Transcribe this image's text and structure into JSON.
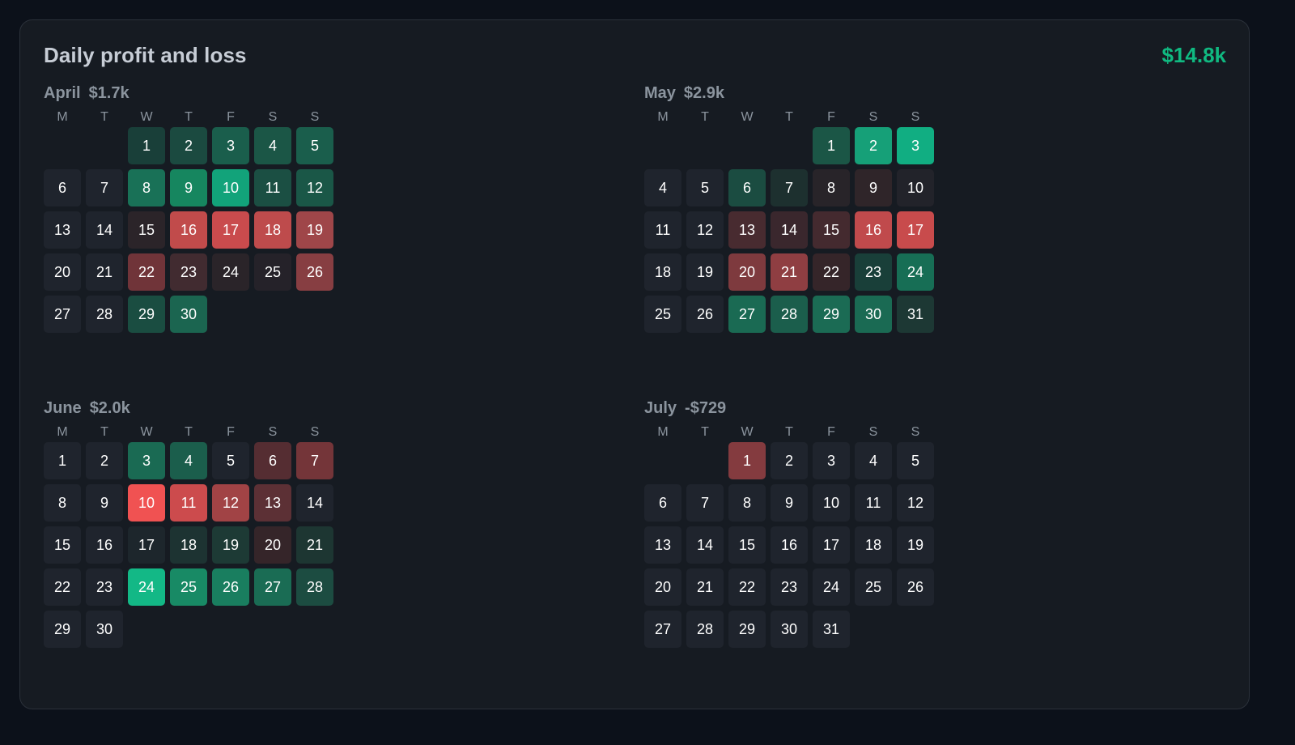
{
  "title": "Daily profit and loss",
  "total": "$14.8k",
  "weekdays": [
    "M",
    "T",
    "W",
    "T",
    "F",
    "S",
    "S"
  ],
  "colors": {
    "background": "#0c111a",
    "panel": "#161b22",
    "neutral_cell": "#1f242d",
    "positive": "#10b981",
    "negative": "#f05252"
  },
  "months": [
    {
      "name": "April",
      "total": "$1.7k",
      "first_weekday": 2,
      "days": 30,
      "cells": {
        "1": "#193f39",
        "2": "#1b4a40",
        "3": "#1a5e4c",
        "4": "#1b5646",
        "5": "#1a5e4c",
        "8": "#197157",
        "9": "#16865f",
        "10": "#12a37a",
        "11": "#1b4f43",
        "12": "#1a5747",
        "15": "#2b2429",
        "16": "#c14b4b",
        "17": "#c94b4d",
        "18": "#be4b4c",
        "19": "#9f4649",
        "22": "#703439",
        "23": "#412b30",
        "24": "#2a2429",
        "25": "#252229",
        "26": "#873e42",
        "29": "#1a4d41",
        "30": "#1b6550"
      }
    },
    {
      "name": "May",
      "total": "$2.9k",
      "first_weekday": 4,
      "days": 31,
      "cells": {
        "1": "#1b5646",
        "2": "#16a078",
        "3": "#11ae82",
        "6": "#1b4c41",
        "7": "#1d302f",
        "8": "#282429",
        "9": "#2f2529",
        "10": "#22232a",
        "13": "#482b30",
        "14": "#3a272d",
        "15": "#442a2f",
        "16": "#c04a4c",
        "17": "#c84b4c",
        "20": "#7e3a3e",
        "21": "#8f3e42",
        "22": "#352529",
        "23": "#193f39",
        "24": "#176e55",
        "27": "#1a6a53",
        "28": "#1b5e4c",
        "29": "#1b6b54",
        "30": "#1a6a53",
        "31": "#1d3834"
      }
    },
    {
      "name": "June",
      "total": "$2.0k",
      "first_weekday": 0,
      "days": 30,
      "cells": {
        "3": "#1a6a53",
        "4": "#1b5e4c",
        "5": "#1f242d",
        "6": "#552d32",
        "7": "#743539",
        "10": "#f05252",
        "11": "#cc4b4d",
        "12": "#a14345",
        "13": "#5c3035",
        "14": "#1f242d",
        "17": "#1d262c",
        "18": "#1d3332",
        "19": "#1d3a35",
        "20": "#352529",
        "21": "#1d3632",
        "24": "#13b886",
        "25": "#188a65",
        "26": "#197e5f",
        "27": "#1a6c54",
        "28": "#1c4c41"
      }
    },
    {
      "name": "July",
      "total": "-$729",
      "first_weekday": 2,
      "days": 31,
      "cells": {
        "1": "#843b3f"
      }
    }
  ]
}
